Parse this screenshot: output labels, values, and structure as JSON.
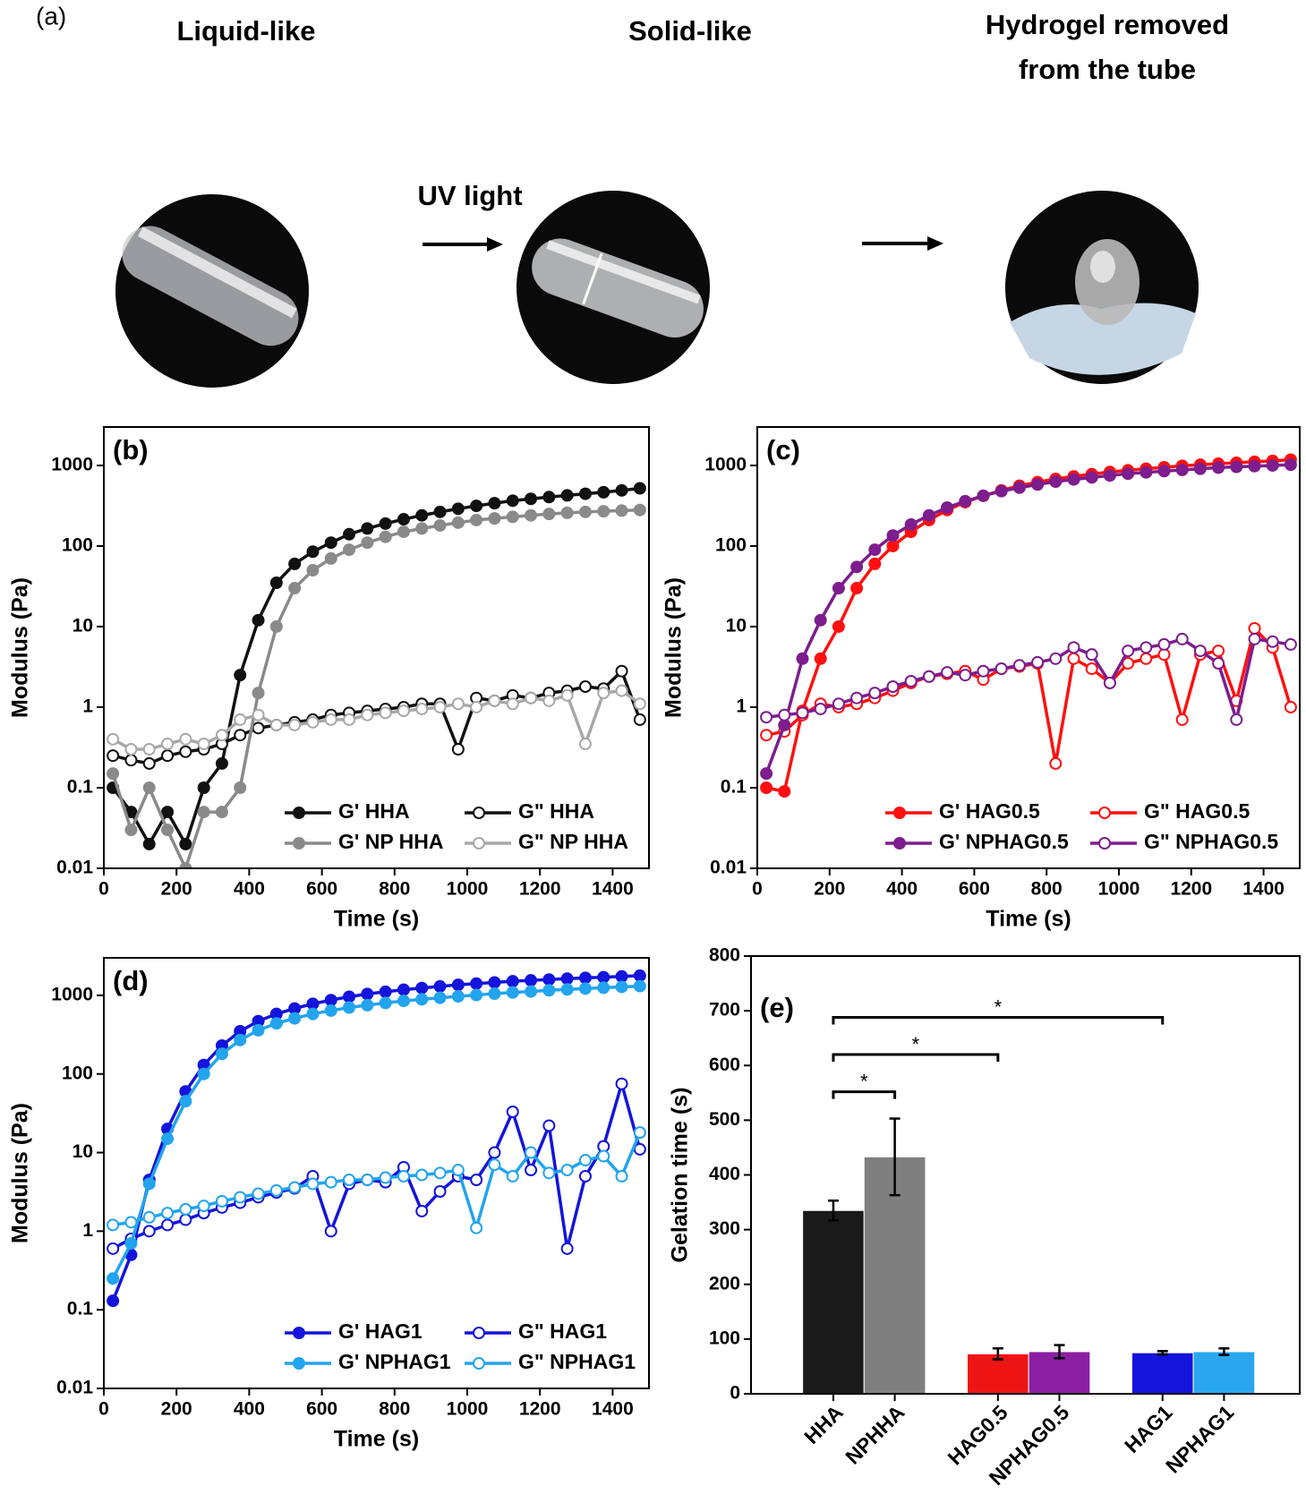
{
  "panel_a": {
    "label": "(a)",
    "titles": [
      "Liquid-like",
      "Solid-like"
    ],
    "title_3": [
      "Hydrogel removed",
      "from the tube"
    ],
    "arrow_label": "UV light"
  },
  "chart_data": [
    {
      "type": "line",
      "title": "(b)",
      "xlabel": "Time (s)",
      "ylabel": "Modulus (Pa)",
      "log_y": true,
      "legend": "lower right",
      "xlim": [
        0,
        1500
      ],
      "ylim": [
        0.01,
        3000
      ],
      "xticks": [
        0,
        200,
        400,
        600,
        800,
        1000,
        1200,
        1400
      ],
      "yticks": [
        0.01,
        0.1,
        1,
        10,
        100,
        1000
      ],
      "x": [
        25,
        75,
        125,
        175,
        225,
        275,
        325,
        375,
        425,
        475,
        525,
        575,
        625,
        675,
        725,
        775,
        825,
        875,
        925,
        975,
        1025,
        1075,
        1125,
        1175,
        1225,
        1275,
        1325,
        1375,
        1425,
        1475
      ],
      "series": [
        {
          "name": "G' HHA",
          "color": "#111111",
          "marker": "filled",
          "values": [
            0.1,
            0.05,
            0.02,
            0.05,
            0.02,
            0.1,
            0.2,
            2.5,
            12,
            35,
            60,
            85,
            110,
            140,
            165,
            190,
            215,
            240,
            265,
            290,
            315,
            340,
            365,
            385,
            405,
            425,
            445,
            465,
            490,
            520
          ]
        },
        {
          "name": "G\" HHA",
          "color": "#111111",
          "marker": "open",
          "values": [
            0.25,
            0.22,
            0.2,
            0.25,
            0.28,
            0.3,
            0.35,
            0.45,
            0.55,
            0.6,
            0.65,
            0.7,
            0.8,
            0.85,
            0.9,
            0.95,
            1.0,
            1.1,
            1.1,
            0.3,
            1.3,
            1.2,
            1.4,
            1.3,
            1.5,
            1.6,
            1.8,
            1.7,
            2.8,
            0.7
          ]
        },
        {
          "name": "G' NP HHA",
          "color": "#8a8a8a",
          "marker": "filled",
          "values": [
            0.15,
            0.03,
            0.1,
            0.03,
            0.01,
            0.05,
            0.05,
            0.1,
            1.5,
            10,
            30,
            50,
            70,
            90,
            110,
            130,
            150,
            165,
            180,
            195,
            210,
            220,
            230,
            240,
            250,
            258,
            265,
            270,
            275,
            280
          ]
        },
        {
          "name": "G\" NP HHA",
          "color": "#a8a8a8",
          "marker": "open",
          "values": [
            0.4,
            0.3,
            0.3,
            0.35,
            0.4,
            0.35,
            0.45,
            0.7,
            0.8,
            0.6,
            0.6,
            0.65,
            0.7,
            0.7,
            0.8,
            0.85,
            0.9,
            0.95,
            1.0,
            1.1,
            1.0,
            1.2,
            1.1,
            1.3,
            1.2,
            1.4,
            0.35,
            1.5,
            1.6,
            1.1
          ]
        }
      ]
    },
    {
      "type": "line",
      "title": "(c)",
      "xlabel": "Time (s)",
      "ylabel": "Modulus (Pa)",
      "log_y": true,
      "legend": "lower right",
      "xlim": [
        0,
        1500
      ],
      "ylim": [
        0.01,
        3000
      ],
      "xticks": [
        0,
        200,
        400,
        600,
        800,
        1000,
        1200,
        1400
      ],
      "yticks": [
        0.01,
        0.1,
        1,
        10,
        100,
        1000
      ],
      "x": [
        25,
        75,
        125,
        175,
        225,
        275,
        325,
        375,
        425,
        475,
        525,
        575,
        625,
        675,
        725,
        775,
        825,
        875,
        925,
        975,
        1025,
        1075,
        1125,
        1175,
        1225,
        1275,
        1325,
        1375,
        1425,
        1475
      ],
      "series": [
        {
          "name": "G' HAG0.5",
          "color": "#ff1010",
          "marker": "filled",
          "values": [
            0.1,
            0.09,
            0.9,
            4,
            10,
            30,
            60,
            100,
            150,
            210,
            280,
            350,
            420,
            490,
            560,
            620,
            680,
            730,
            780,
            830,
            870,
            910,
            950,
            990,
            1020,
            1050,
            1080,
            1110,
            1140,
            1180
          ]
        },
        {
          "name": "G\" HAG0.5",
          "color": "#ff1010",
          "marker": "open",
          "values": [
            0.45,
            0.5,
            0.8,
            1.1,
            1.0,
            1.1,
            1.3,
            1.6,
            2.0,
            2.4,
            2.6,
            2.8,
            2.2,
            3.0,
            3.2,
            3.5,
            0.2,
            4.0,
            3.0,
            2.0,
            3.5,
            4.0,
            4.5,
            0.7,
            4.5,
            5.0,
            1.2,
            9.5,
            5.5,
            1.0
          ]
        },
        {
          "name": "G' NPHAG0.5",
          "color": "#7d1d8e",
          "marker": "filled",
          "values": [
            0.15,
            0.6,
            4,
            12,
            30,
            55,
            90,
            135,
            185,
            240,
            300,
            360,
            420,
            480,
            530,
            580,
            630,
            670,
            710,
            750,
            790,
            820,
            850,
            880,
            910,
            940,
            960,
            980,
            1000,
            1020
          ]
        },
        {
          "name": "G\" NPHAG0.5",
          "color": "#7d1d8e",
          "marker": "open",
          "values": [
            0.75,
            0.8,
            0.85,
            0.95,
            1.1,
            1.3,
            1.5,
            1.8,
            2.1,
            2.4,
            2.7,
            2.5,
            2.8,
            3.0,
            3.3,
            3.6,
            4.0,
            5.5,
            4.5,
            2.0,
            5.0,
            5.5,
            6.0,
            7.0,
            5.0,
            3.5,
            0.7,
            7.0,
            6.5,
            6.0
          ]
        }
      ]
    },
    {
      "type": "line",
      "title": "(d)",
      "xlabel": "Time (s)",
      "ylabel": "Modulus (Pa)",
      "log_y": true,
      "legend": "lower right",
      "xlim": [
        0,
        1500
      ],
      "ylim": [
        0.01,
        3000
      ],
      "xticks": [
        0,
        200,
        400,
        600,
        800,
        1000,
        1200,
        1400
      ],
      "yticks": [
        0.01,
        0.1,
        1,
        10,
        100,
        1000
      ],
      "x": [
        25,
        75,
        125,
        175,
        225,
        275,
        325,
        375,
        425,
        475,
        525,
        575,
        625,
        675,
        725,
        775,
        825,
        875,
        925,
        975,
        1025,
        1075,
        1125,
        1175,
        1225,
        1275,
        1325,
        1375,
        1425,
        1475
      ],
      "series": [
        {
          "name": "G' HAG1",
          "color": "#1414dc",
          "marker": "filled",
          "values": [
            0.13,
            0.5,
            4.5,
            20,
            60,
            130,
            230,
            350,
            470,
            580,
            680,
            780,
            870,
            960,
            1040,
            1110,
            1180,
            1240,
            1300,
            1360,
            1410,
            1460,
            1510,
            1550,
            1590,
            1630,
            1670,
            1700,
            1740,
            1780
          ]
        },
        {
          "name": "G\" HAG1",
          "color": "#1414dc",
          "marker": "open",
          "values": [
            0.6,
            0.8,
            1.0,
            1.2,
            1.4,
            1.7,
            2.0,
            2.3,
            2.7,
            3.1,
            3.5,
            5.0,
            1.0,
            4.0,
            4.5,
            4.2,
            6.5,
            1.8,
            3.2,
            5.0,
            4.5,
            10,
            33,
            6.0,
            22,
            0.6,
            5.0,
            12,
            75,
            11
          ]
        },
        {
          "name": "G' NPHAG1",
          "color": "#22a4ee",
          "marker": "filled",
          "values": [
            0.25,
            0.7,
            4,
            15,
            45,
            100,
            180,
            270,
            360,
            440,
            510,
            580,
            640,
            700,
            750,
            800,
            850,
            890,
            930,
            970,
            1010,
            1050,
            1090,
            1120,
            1160,
            1190,
            1220,
            1250,
            1280,
            1310
          ]
        },
        {
          "name": "G\" NPHAG1",
          "color": "#22a4ee",
          "marker": "open",
          "values": [
            1.2,
            1.3,
            1.5,
            1.7,
            1.9,
            2.1,
            2.4,
            2.7,
            3.0,
            3.3,
            3.6,
            4.0,
            4.2,
            4.5,
            4.5,
            4.8,
            5.0,
            5.2,
            5.5,
            6.0,
            1.1,
            7.0,
            5.0,
            10,
            5.5,
            6.0,
            8.0,
            9.0,
            5.0,
            18
          ]
        }
      ]
    },
    {
      "type": "bar",
      "title": "(e)",
      "ylabel": "Gelation time (s)",
      "ylim": [
        0,
        800
      ],
      "yticks": [
        0,
        100,
        200,
        300,
        400,
        500,
        600,
        700,
        800
      ],
      "categories": [
        "HHA",
        "NPHHA",
        "HAG0.5",
        "NPHAG0.5",
        "HAG1",
        "NPHAG1"
      ],
      "values": [
        335,
        433,
        73,
        77,
        75,
        77
      ],
      "errors": [
        18,
        70,
        10,
        12,
        3,
        6
      ],
      "colors": [
        "#1a1a1a",
        "#7f7f7f",
        "#ee1414",
        "#8a1fa2",
        "#1414dc",
        "#2aa6ee"
      ],
      "annotations": [
        "*",
        "*",
        "*"
      ]
    }
  ]
}
